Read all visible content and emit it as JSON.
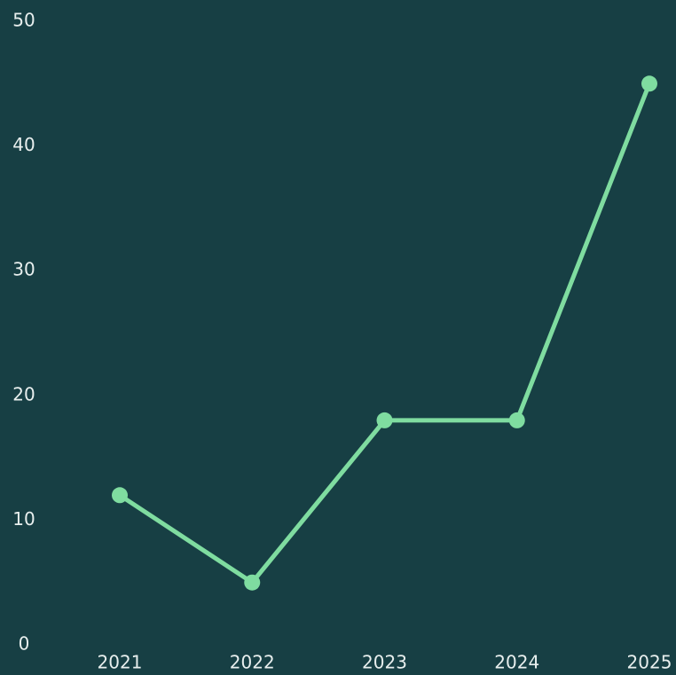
{
  "chart_data": {
    "type": "line",
    "categories": [
      "2021",
      "2022",
      "2023",
      "2024",
      "2025"
    ],
    "series": [
      {
        "color": "#7fdca0",
        "values": [
          12,
          5,
          18,
          18,
          45
        ]
      }
    ],
    "ylim": [
      0,
      50
    ],
    "yticks": [
      0,
      10,
      20,
      30,
      40,
      50
    ],
    "grid": false
  }
}
